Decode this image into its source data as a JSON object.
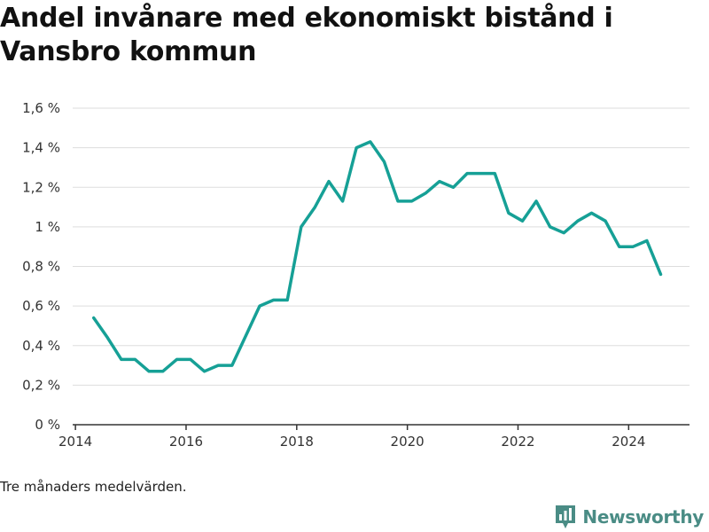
{
  "title": "Andel invånare med ekonomiskt bistånd i Vansbro kommun",
  "note": "Tre månaders medelvärden.",
  "brand": {
    "name": "Newsworthy",
    "icon": "bar-chart-logo-icon",
    "color": "#4a8c85"
  },
  "colors": {
    "line": "#16a096",
    "grid": "#dddddd",
    "axis": "#333333"
  },
  "chart_data": {
    "type": "line",
    "title": "Andel invånare med ekonomiskt bistånd i Vansbro kommun",
    "xlabel": "",
    "ylabel": "",
    "xlim": [
      2013.95,
      2025.1
    ],
    "ylim": [
      0,
      1.6
    ],
    "y_ticks": [
      0,
      0.2,
      0.4,
      0.6,
      0.8,
      1.0,
      1.2,
      1.4,
      1.6
    ],
    "y_tick_labels": [
      "0 %",
      "0,2 %",
      "0,4 %",
      "0,6 %",
      "0,8 %",
      "1 %",
      "1,2 %",
      "1,4 %",
      "1,6 %"
    ],
    "x_ticks": [
      2014,
      2016,
      2018,
      2020,
      2022,
      2024
    ],
    "x_tick_labels": [
      "2014",
      "2016",
      "2018",
      "2020",
      "2022",
      "2024"
    ],
    "grid": true,
    "series": [
      {
        "x": [
          2014.33,
          2014.58,
          2014.83,
          2015.08,
          2015.33,
          2015.58,
          2015.83,
          2016.08,
          2016.33,
          2016.58,
          2016.83,
          2017.08,
          2017.33,
          2017.58,
          2017.83,
          2018.08,
          2018.33,
          2018.58,
          2018.83,
          2019.08,
          2019.33,
          2019.58,
          2019.83,
          2020.08,
          2020.33,
          2020.58,
          2020.83,
          2021.08,
          2021.33,
          2021.58,
          2021.83,
          2022.08,
          2022.33,
          2022.58,
          2022.83,
          2023.08,
          2023.33,
          2023.58,
          2023.83,
          2024.08,
          2024.33,
          2024.58
        ],
        "values": [
          0.54,
          0.44,
          0.33,
          0.33,
          0.27,
          0.27,
          0.33,
          0.33,
          0.27,
          0.3,
          0.3,
          0.45,
          0.6,
          0.63,
          0.63,
          1.0,
          1.1,
          1.23,
          1.13,
          1.4,
          1.43,
          1.33,
          1.13,
          1.13,
          1.17,
          1.23,
          1.2,
          1.27,
          1.27,
          1.27,
          1.07,
          1.03,
          1.13,
          1.0,
          0.97,
          1.03,
          1.07,
          1.03,
          0.9,
          0.9,
          0.93,
          0.76
        ]
      }
    ]
  }
}
